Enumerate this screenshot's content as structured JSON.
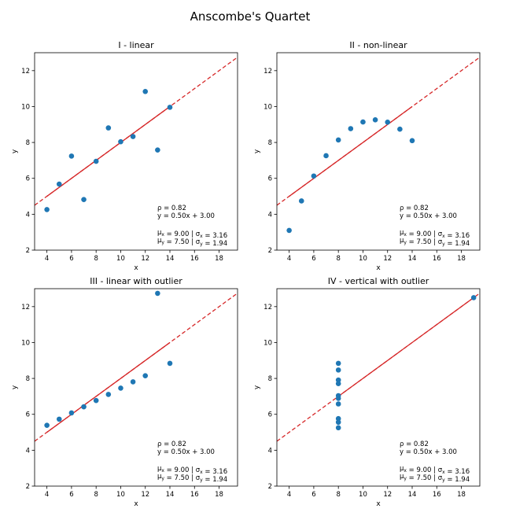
{
  "figure": {
    "title": "Anscombe's Quartet"
  },
  "style": {
    "point_color": "#1f77b4",
    "line_color": "#d62728"
  },
  "chart_data": [
    {
      "type": "scatter",
      "title": "I - linear",
      "xlabel": "x",
      "ylabel": "y",
      "xlim": [
        3,
        19.5
      ],
      "ylim": [
        2,
        13
      ],
      "xticks": [
        4,
        6,
        8,
        10,
        12,
        14,
        16,
        18
      ],
      "yticks": [
        2,
        4,
        6,
        8,
        10,
        12
      ],
      "x": [
        10,
        8,
        13,
        9,
        11,
        14,
        6,
        4,
        12,
        7,
        5
      ],
      "y": [
        8.04,
        6.95,
        7.58,
        8.81,
        8.33,
        9.96,
        7.24,
        4.26,
        10.84,
        4.82,
        5.68
      ],
      "fit": {
        "slope": 0.5,
        "intercept": 3.0
      },
      "stats": [
        "ρ = 0.82",
        "y = 0.50x + 3.00"
      ],
      "stats2": [
        {
          "mu": "μ",
          "mu_sub": "x",
          "mu_val": " = 9.00 | ",
          "sigma": "σ",
          "sigma_sub": "x",
          "sigma_val": " = 3.16"
        },
        {
          "mu": "μ",
          "mu_sub": "y",
          "mu_val": " = 7.50 | ",
          "sigma": "σ",
          "sigma_sub": "y",
          "sigma_val": " = 1.94"
        }
      ]
    },
    {
      "type": "scatter",
      "title": "II - non-linear",
      "xlabel": "x",
      "ylabel": "y",
      "xlim": [
        3,
        19.5
      ],
      "ylim": [
        2,
        13
      ],
      "xticks": [
        4,
        6,
        8,
        10,
        12,
        14,
        16,
        18
      ],
      "yticks": [
        2,
        4,
        6,
        8,
        10,
        12
      ],
      "x": [
        10,
        8,
        13,
        9,
        11,
        14,
        6,
        4,
        12,
        7,
        5
      ],
      "y": [
        9.14,
        8.14,
        8.74,
        8.77,
        9.26,
        8.1,
        6.13,
        3.1,
        9.13,
        7.26,
        4.74
      ],
      "fit": {
        "slope": 0.5,
        "intercept": 3.0
      },
      "stats": [
        "ρ = 0.82",
        "y = 0.50x + 3.00"
      ],
      "stats2": [
        {
          "mu": "μ",
          "mu_sub": "x",
          "mu_val": " = 9.00 | ",
          "sigma": "σ",
          "sigma_sub": "x",
          "sigma_val": " = 3.16"
        },
        {
          "mu": "μ",
          "mu_sub": "y",
          "mu_val": " = 7.50 | ",
          "sigma": "σ",
          "sigma_sub": "y",
          "sigma_val": " = 1.94"
        }
      ]
    },
    {
      "type": "scatter",
      "title": "III - linear with outlier",
      "xlabel": "x",
      "ylabel": "y",
      "xlim": [
        3,
        19.5
      ],
      "ylim": [
        2,
        13
      ],
      "xticks": [
        4,
        6,
        8,
        10,
        12,
        14,
        16,
        18
      ],
      "yticks": [
        2,
        4,
        6,
        8,
        10,
        12
      ],
      "x": [
        10,
        8,
        13,
        9,
        11,
        14,
        6,
        4,
        12,
        7,
        5
      ],
      "y": [
        7.46,
        6.77,
        12.74,
        7.11,
        7.81,
        8.84,
        6.08,
        5.39,
        8.15,
        6.42,
        5.73
      ],
      "fit": {
        "slope": 0.5,
        "intercept": 3.0
      },
      "stats": [
        "ρ = 0.82",
        "y = 0.50x + 3.00"
      ],
      "stats2": [
        {
          "mu": "μ",
          "mu_sub": "x",
          "mu_val": " = 9.00 | ",
          "sigma": "σ",
          "sigma_sub": "x",
          "sigma_val": " = 3.16"
        },
        {
          "mu": "μ",
          "mu_sub": "y",
          "mu_val": " = 7.50 | ",
          "sigma": "σ",
          "sigma_sub": "y",
          "sigma_val": " = 1.94"
        }
      ]
    },
    {
      "type": "scatter",
      "title": "IV - vertical with outlier",
      "xlabel": "x",
      "ylabel": "y",
      "xlim": [
        3,
        19.5
      ],
      "ylim": [
        2,
        13
      ],
      "xticks": [
        4,
        6,
        8,
        10,
        12,
        14,
        16,
        18
      ],
      "yticks": [
        2,
        4,
        6,
        8,
        10,
        12
      ],
      "x": [
        8,
        8,
        8,
        8,
        8,
        8,
        8,
        19,
        8,
        8,
        8
      ],
      "y": [
        6.58,
        5.76,
        7.71,
        8.84,
        8.47,
        7.04,
        5.25,
        12.5,
        5.56,
        7.91,
        6.89
      ],
      "fit": {
        "slope": 0.5,
        "intercept": 3.0
      },
      "stats": [
        "ρ = 0.82",
        "y = 0.50x + 3.00"
      ],
      "stats2": [
        {
          "mu": "μ",
          "mu_sub": "x",
          "mu_val": " = 9.00 | ",
          "sigma": "σ",
          "sigma_sub": "x",
          "sigma_val": " = 3.16"
        },
        {
          "mu": "μ",
          "mu_sub": "y",
          "mu_val": " = 7.50 | ",
          "sigma": "σ",
          "sigma_sub": "y",
          "sigma_val": " = 1.94"
        }
      ]
    }
  ]
}
